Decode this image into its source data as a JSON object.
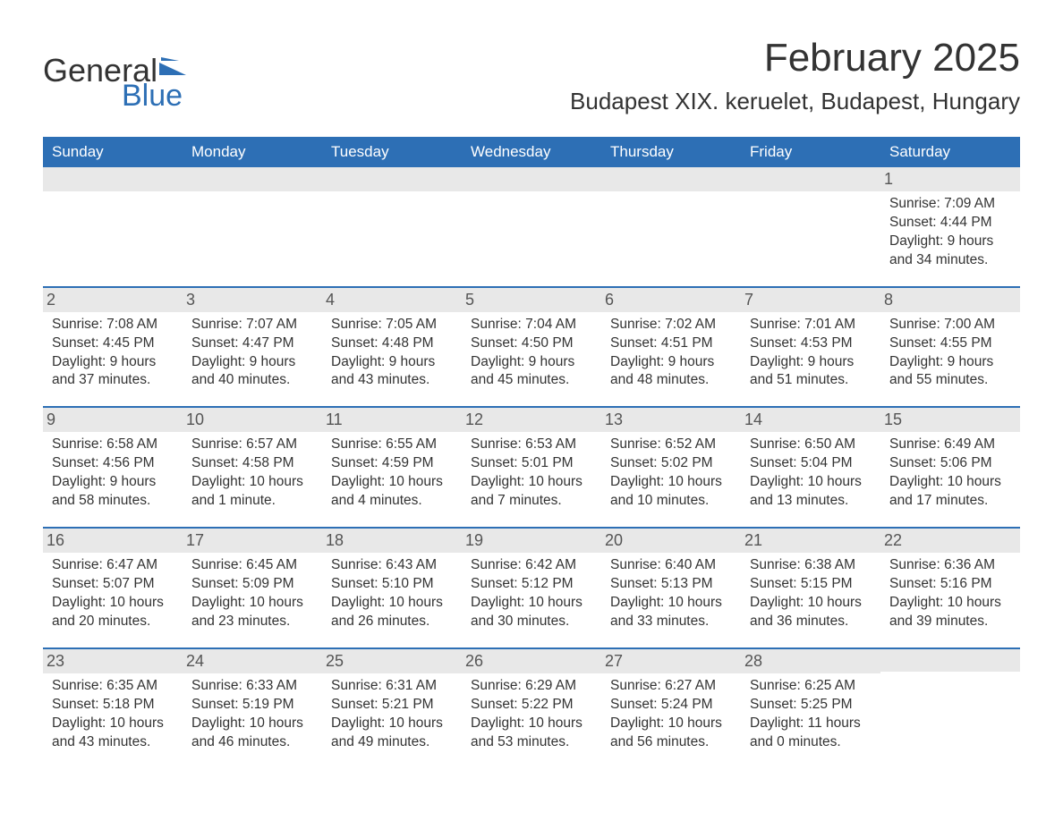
{
  "brand": {
    "word1": "General",
    "word2": "Blue",
    "accent_color": "#2d6fb5",
    "text_color": "#333333"
  },
  "title": "February 2025",
  "location": "Budapest XIX. keruelet, Budapest, Hungary",
  "colors": {
    "header_bg": "#2d6fb5",
    "header_text": "#ffffff",
    "daynum_bg": "#e8e8e8",
    "daynum_text": "#555555",
    "body_text": "#333333",
    "page_bg": "#ffffff",
    "row_separator": "#2d6fb5"
  },
  "typography": {
    "body_fontsize": 15.5,
    "title_fontsize": 44,
    "location_fontsize": 26,
    "dayheader_fontsize": 17,
    "daynum_fontsize": 18
  },
  "day_headers": [
    "Sunday",
    "Monday",
    "Tuesday",
    "Wednesday",
    "Thursday",
    "Friday",
    "Saturday"
  ],
  "weeks": [
    [
      null,
      null,
      null,
      null,
      null,
      null,
      {
        "num": "1",
        "sunrise": "Sunrise: 7:09 AM",
        "sunset": "Sunset: 4:44 PM",
        "daylight": "Daylight: 9 hours and 34 minutes."
      }
    ],
    [
      {
        "num": "2",
        "sunrise": "Sunrise: 7:08 AM",
        "sunset": "Sunset: 4:45 PM",
        "daylight": "Daylight: 9 hours and 37 minutes."
      },
      {
        "num": "3",
        "sunrise": "Sunrise: 7:07 AM",
        "sunset": "Sunset: 4:47 PM",
        "daylight": "Daylight: 9 hours and 40 minutes."
      },
      {
        "num": "4",
        "sunrise": "Sunrise: 7:05 AM",
        "sunset": "Sunset: 4:48 PM",
        "daylight": "Daylight: 9 hours and 43 minutes."
      },
      {
        "num": "5",
        "sunrise": "Sunrise: 7:04 AM",
        "sunset": "Sunset: 4:50 PM",
        "daylight": "Daylight: 9 hours and 45 minutes."
      },
      {
        "num": "6",
        "sunrise": "Sunrise: 7:02 AM",
        "sunset": "Sunset: 4:51 PM",
        "daylight": "Daylight: 9 hours and 48 minutes."
      },
      {
        "num": "7",
        "sunrise": "Sunrise: 7:01 AM",
        "sunset": "Sunset: 4:53 PM",
        "daylight": "Daylight: 9 hours and 51 minutes."
      },
      {
        "num": "8",
        "sunrise": "Sunrise: 7:00 AM",
        "sunset": "Sunset: 4:55 PM",
        "daylight": "Daylight: 9 hours and 55 minutes."
      }
    ],
    [
      {
        "num": "9",
        "sunrise": "Sunrise: 6:58 AM",
        "sunset": "Sunset: 4:56 PM",
        "daylight": "Daylight: 9 hours and 58 minutes."
      },
      {
        "num": "10",
        "sunrise": "Sunrise: 6:57 AM",
        "sunset": "Sunset: 4:58 PM",
        "daylight": "Daylight: 10 hours and 1 minute."
      },
      {
        "num": "11",
        "sunrise": "Sunrise: 6:55 AM",
        "sunset": "Sunset: 4:59 PM",
        "daylight": "Daylight: 10 hours and 4 minutes."
      },
      {
        "num": "12",
        "sunrise": "Sunrise: 6:53 AM",
        "sunset": "Sunset: 5:01 PM",
        "daylight": "Daylight: 10 hours and 7 minutes."
      },
      {
        "num": "13",
        "sunrise": "Sunrise: 6:52 AM",
        "sunset": "Sunset: 5:02 PM",
        "daylight": "Daylight: 10 hours and 10 minutes."
      },
      {
        "num": "14",
        "sunrise": "Sunrise: 6:50 AM",
        "sunset": "Sunset: 5:04 PM",
        "daylight": "Daylight: 10 hours and 13 minutes."
      },
      {
        "num": "15",
        "sunrise": "Sunrise: 6:49 AM",
        "sunset": "Sunset: 5:06 PM",
        "daylight": "Daylight: 10 hours and 17 minutes."
      }
    ],
    [
      {
        "num": "16",
        "sunrise": "Sunrise: 6:47 AM",
        "sunset": "Sunset: 5:07 PM",
        "daylight": "Daylight: 10 hours and 20 minutes."
      },
      {
        "num": "17",
        "sunrise": "Sunrise: 6:45 AM",
        "sunset": "Sunset: 5:09 PM",
        "daylight": "Daylight: 10 hours and 23 minutes."
      },
      {
        "num": "18",
        "sunrise": "Sunrise: 6:43 AM",
        "sunset": "Sunset: 5:10 PM",
        "daylight": "Daylight: 10 hours and 26 minutes."
      },
      {
        "num": "19",
        "sunrise": "Sunrise: 6:42 AM",
        "sunset": "Sunset: 5:12 PM",
        "daylight": "Daylight: 10 hours and 30 minutes."
      },
      {
        "num": "20",
        "sunrise": "Sunrise: 6:40 AM",
        "sunset": "Sunset: 5:13 PM",
        "daylight": "Daylight: 10 hours and 33 minutes."
      },
      {
        "num": "21",
        "sunrise": "Sunrise: 6:38 AM",
        "sunset": "Sunset: 5:15 PM",
        "daylight": "Daylight: 10 hours and 36 minutes."
      },
      {
        "num": "22",
        "sunrise": "Sunrise: 6:36 AM",
        "sunset": "Sunset: 5:16 PM",
        "daylight": "Daylight: 10 hours and 39 minutes."
      }
    ],
    [
      {
        "num": "23",
        "sunrise": "Sunrise: 6:35 AM",
        "sunset": "Sunset: 5:18 PM",
        "daylight": "Daylight: 10 hours and 43 minutes."
      },
      {
        "num": "24",
        "sunrise": "Sunrise: 6:33 AM",
        "sunset": "Sunset: 5:19 PM",
        "daylight": "Daylight: 10 hours and 46 minutes."
      },
      {
        "num": "25",
        "sunrise": "Sunrise: 6:31 AM",
        "sunset": "Sunset: 5:21 PM",
        "daylight": "Daylight: 10 hours and 49 minutes."
      },
      {
        "num": "26",
        "sunrise": "Sunrise: 6:29 AM",
        "sunset": "Sunset: 5:22 PM",
        "daylight": "Daylight: 10 hours and 53 minutes."
      },
      {
        "num": "27",
        "sunrise": "Sunrise: 6:27 AM",
        "sunset": "Sunset: 5:24 PM",
        "daylight": "Daylight: 10 hours and 56 minutes."
      },
      {
        "num": "28",
        "sunrise": "Sunrise: 6:25 AM",
        "sunset": "Sunset: 5:25 PM",
        "daylight": "Daylight: 11 hours and 0 minutes."
      },
      null
    ]
  ]
}
